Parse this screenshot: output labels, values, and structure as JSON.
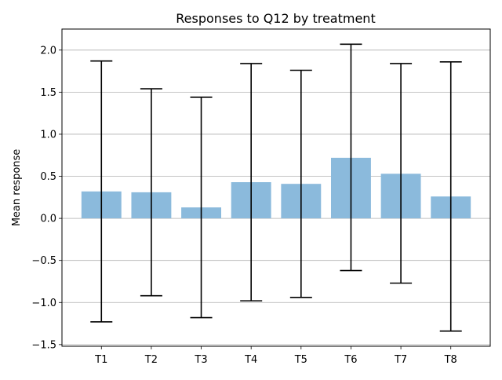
{
  "chart_data": {
    "type": "bar",
    "title": "Responses to Q12 by treatment",
    "xlabel": "",
    "ylabel": "Mean response",
    "categories": [
      "T1",
      "T2",
      "T3",
      "T4",
      "T5",
      "T6",
      "T7",
      "T8"
    ],
    "values": [
      0.32,
      0.31,
      0.13,
      0.43,
      0.41,
      0.72,
      0.53,
      0.26
    ],
    "error_bars": {
      "upper": [
        1.87,
        1.54,
        1.44,
        1.84,
        1.76,
        2.07,
        1.84,
        1.86
      ],
      "lower": [
        -1.23,
        -0.92,
        -1.18,
        -0.98,
        -0.94,
        -0.62,
        -0.77,
        -1.34
      ]
    },
    "ylim": [
      -1.52,
      2.25
    ],
    "yticks": [
      -1.5,
      -1.0,
      -0.5,
      0.0,
      0.5,
      1.0,
      1.5,
      2.0
    ],
    "ytick_labels": [
      "−1.5",
      "−1.0",
      "−0.5",
      "0.0",
      "0.5",
      "1.0",
      "1.5",
      "2.0"
    ],
    "grid": "y",
    "colors": {
      "bar": "#8bbadc",
      "error": "#000000",
      "grid": "#b0b0b0"
    }
  }
}
